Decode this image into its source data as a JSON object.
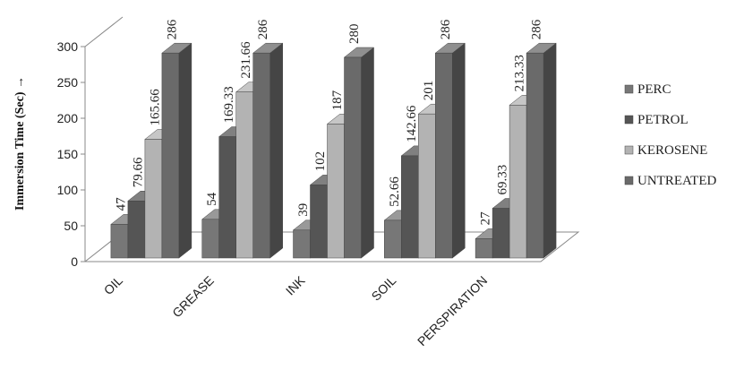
{
  "chart_data": {
    "type": "bar",
    "style": "3d-clustered-column",
    "categories": [
      "OIL",
      "GREASE",
      "INK",
      "SOIL",
      "PERSPIRATION"
    ],
    "series": [
      {
        "name": "PERC",
        "values": [
          47,
          54,
          39,
          52.66,
          27
        ],
        "labels": [
          "47",
          "54",
          "39",
          "52.66",
          "27"
        ],
        "color": "#777777"
      },
      {
        "name": "PETROL",
        "values": [
          79.66,
          169.33,
          102,
          142.66,
          69.33
        ],
        "labels": [
          "79.66",
          "169.33",
          "102",
          "142.66",
          "69.33"
        ],
        "color": "#555555"
      },
      {
        "name": "KEROSENE",
        "values": [
          165.66,
          231.66,
          187,
          201,
          213.33
        ],
        "labels": [
          "165.66",
          "231.66",
          "187",
          "201",
          "213.33"
        ],
        "color": "#b3b3b3"
      },
      {
        "name": "UNTREATED",
        "values": [
          286,
          286,
          280,
          286,
          286
        ],
        "labels": [
          "286",
          "286",
          "280",
          "286",
          "286"
        ],
        "color": "#6a6a6a"
      }
    ],
    "ylabel": "Immersion Time (Sec) →",
    "xlabel": "",
    "ylim": [
      0,
      300
    ],
    "yticks": [
      0,
      50,
      100,
      150,
      200,
      250,
      300
    ],
    "grid": false,
    "legend_position": "right"
  }
}
